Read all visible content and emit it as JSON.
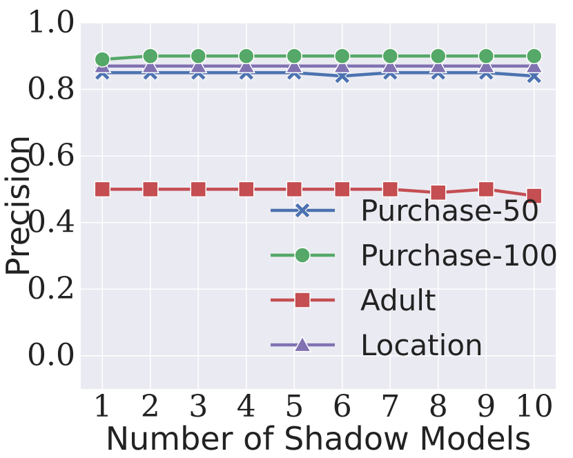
{
  "chart_data": {
    "type": "line",
    "title": "",
    "xlabel": "Number of Shadow Models",
    "ylabel": "Precision",
    "x": [
      1,
      2,
      3,
      4,
      5,
      6,
      7,
      8,
      9,
      10
    ],
    "xlim": [
      0.55,
      10.45
    ],
    "ylim": [
      -0.1,
      1.0
    ],
    "yticks": [
      "0.0",
      "0.2",
      "0.4",
      "0.6",
      "0.8",
      "1.0"
    ],
    "ytick_values": [
      0.0,
      0.2,
      0.4,
      0.6,
      0.8,
      1.0
    ],
    "xticks": [
      "1",
      "2",
      "3",
      "4",
      "5",
      "6",
      "7",
      "8",
      "9",
      "10"
    ],
    "grid": true,
    "legend_position": "bottom-right",
    "series": [
      {
        "name": "Purchase-50",
        "color": "#4c72b0",
        "marker": "x-icon",
        "values": [
          0.85,
          0.85,
          0.85,
          0.85,
          0.85,
          0.84,
          0.85,
          0.85,
          0.85,
          0.84
        ]
      },
      {
        "name": "Purchase-100",
        "color": "#55a868",
        "marker": "circle-icon",
        "values": [
          0.89,
          0.9,
          0.9,
          0.9,
          0.9,
          0.9,
          0.9,
          0.9,
          0.9,
          0.9
        ]
      },
      {
        "name": "Adult",
        "color": "#c44e52",
        "marker": "square-icon",
        "values": [
          0.5,
          0.5,
          0.5,
          0.5,
          0.5,
          0.5,
          0.5,
          0.49,
          0.5,
          0.48
        ]
      },
      {
        "name": "Location",
        "color": "#8172b2",
        "marker": "triangle-icon",
        "values": [
          0.87,
          0.87,
          0.87,
          0.87,
          0.87,
          0.87,
          0.87,
          0.87,
          0.87,
          0.87
        ]
      }
    ]
  },
  "colors": {
    "plot_background": "#eaeaf2",
    "grid": "#ffffff"
  }
}
